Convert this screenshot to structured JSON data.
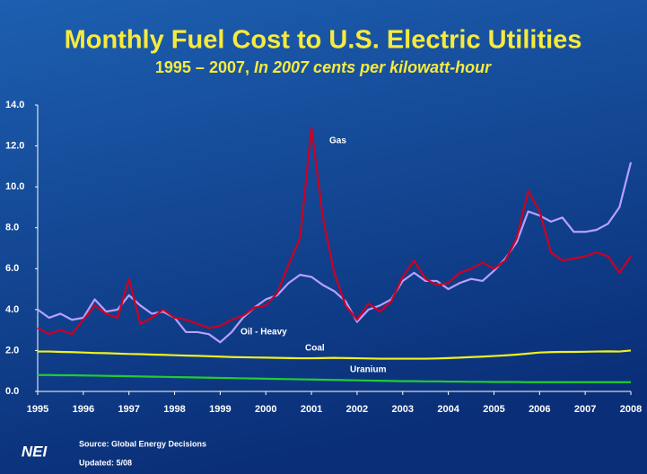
{
  "chart_data": {
    "type": "line",
    "title": "Monthly Fuel Cost to U.S. Electric Utilities",
    "subtitle": "1995 – 2007,",
    "subtitle_unit": "In 2007 cents per kilowatt-hour",
    "x": [
      1995,
      1995.25,
      1995.5,
      1995.75,
      1996,
      1996.25,
      1996.5,
      1996.75,
      1997,
      1997.25,
      1997.5,
      1997.75,
      1998,
      1998.25,
      1998.5,
      1998.75,
      1999,
      1999.25,
      1999.5,
      1999.75,
      2000,
      2000.25,
      2000.5,
      2000.75,
      2001,
      2001.25,
      2001.5,
      2001.75,
      2002,
      2002.25,
      2002.5,
      2002.75,
      2003,
      2003.25,
      2003.5,
      2003.75,
      2004,
      2004.25,
      2004.5,
      2004.75,
      2005,
      2005.25,
      2005.5,
      2005.75,
      2006,
      2006.25,
      2006.5,
      2006.75,
      2007,
      2007.25,
      2007.5,
      2007.75,
      2008
    ],
    "series": [
      {
        "name": "Gas",
        "color": "#cc0022",
        "values": [
          3.1,
          2.8,
          3.0,
          2.8,
          3.5,
          4.2,
          3.8,
          3.6,
          5.5,
          3.3,
          3.6,
          4.0,
          3.6,
          3.5,
          3.3,
          3.1,
          3.2,
          3.5,
          3.7,
          4.1,
          4.2,
          4.8,
          6.2,
          7.5,
          12.9,
          8.5,
          5.8,
          4.2,
          3.5,
          4.3,
          3.9,
          4.4,
          5.6,
          6.4,
          5.5,
          5.2,
          5.3,
          5.8,
          6.0,
          6.3,
          6.0,
          6.4,
          7.5,
          9.8,
          8.8,
          6.8,
          6.4,
          6.5,
          6.6,
          6.8,
          6.6,
          5.8,
          6.6
        ]
      },
      {
        "name": "Oil - Heavy",
        "color": "#b8a0ff",
        "values": [
          4.0,
          3.6,
          3.8,
          3.5,
          3.6,
          4.5,
          3.9,
          4.0,
          4.7,
          4.2,
          3.8,
          3.9,
          3.6,
          2.9,
          2.9,
          2.8,
          2.4,
          2.9,
          3.6,
          4.1,
          4.5,
          4.7,
          5.3,
          5.7,
          5.6,
          5.2,
          4.9,
          4.4,
          3.4,
          4.0,
          4.2,
          4.5,
          5.4,
          5.8,
          5.4,
          5.4,
          5.0,
          5.3,
          5.5,
          5.4,
          5.9,
          6.5,
          7.3,
          8.8,
          8.6,
          8.3,
          8.5,
          7.8,
          7.8,
          7.9,
          8.2,
          9.0,
          11.2
        ]
      },
      {
        "name": "Coal",
        "color": "#f0f020",
        "values": [
          1.95,
          1.95,
          1.93,
          1.92,
          1.9,
          1.88,
          1.87,
          1.85,
          1.83,
          1.82,
          1.8,
          1.79,
          1.77,
          1.75,
          1.74,
          1.72,
          1.7,
          1.68,
          1.67,
          1.66,
          1.65,
          1.64,
          1.63,
          1.62,
          1.62,
          1.63,
          1.64,
          1.63,
          1.62,
          1.61,
          1.6,
          1.6,
          1.6,
          1.6,
          1.6,
          1.61,
          1.63,
          1.65,
          1.68,
          1.7,
          1.73,
          1.76,
          1.8,
          1.85,
          1.9,
          1.92,
          1.93,
          1.93,
          1.94,
          1.95,
          1.96,
          1.95,
          2.0
        ]
      },
      {
        "name": "Uranium",
        "color": "#22cc33",
        "values": [
          0.8,
          0.8,
          0.79,
          0.79,
          0.78,
          0.77,
          0.76,
          0.75,
          0.74,
          0.73,
          0.72,
          0.71,
          0.7,
          0.69,
          0.68,
          0.67,
          0.66,
          0.65,
          0.64,
          0.63,
          0.62,
          0.61,
          0.6,
          0.59,
          0.58,
          0.57,
          0.56,
          0.55,
          0.54,
          0.53,
          0.52,
          0.51,
          0.5,
          0.5,
          0.49,
          0.49,
          0.48,
          0.48,
          0.47,
          0.47,
          0.46,
          0.46,
          0.46,
          0.45,
          0.45,
          0.45,
          0.45,
          0.45,
          0.45,
          0.45,
          0.45,
          0.45,
          0.45
        ]
      }
    ],
    "xlim": [
      1995,
      2008
    ],
    "xticks": [
      1995,
      1996,
      1997,
      1998,
      1999,
      2000,
      2001,
      2002,
      2003,
      2004,
      2005,
      2006,
      2007,
      2008
    ],
    "ylim": [
      0,
      14
    ],
    "yticks": [
      {
        "value": 0,
        "label": "0.0"
      },
      {
        "value": 2,
        "label": "2.0"
      },
      {
        "value": 4,
        "label": "4.0"
      },
      {
        "value": 6,
        "label": "6.0"
      },
      {
        "value": 8,
        "label": "8.0"
      },
      {
        "value": 10,
        "label": "10.0"
      },
      {
        "value": 12,
        "label": "12.0"
      },
      {
        "value": 14,
        "label": "14.0"
      }
    ],
    "source": "Source: Global Energy Decisions",
    "updated": "Updated: 5/08",
    "logo": "NEI"
  }
}
